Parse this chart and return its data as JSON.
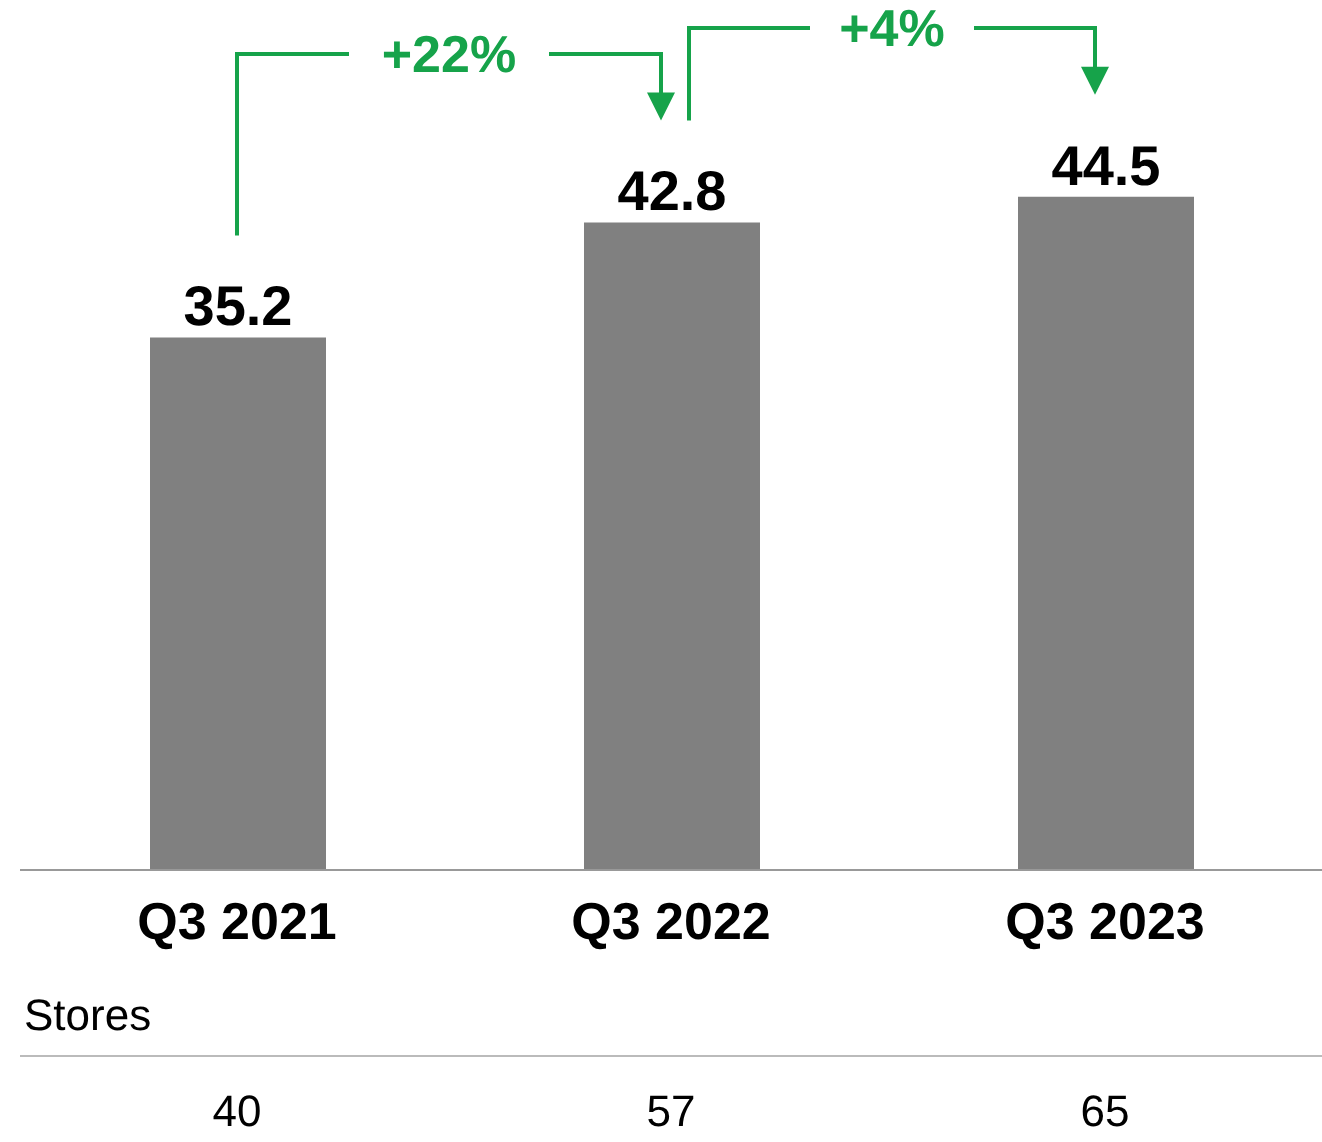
{
  "chart_data": [
    {
      "type": "bar",
      "categories": [
        "Q3 2021",
        "Q3 2022",
        "Q3 2023"
      ],
      "values": [
        35.2,
        42.8,
        44.5
      ],
      "color": "#808080",
      "ylim": [
        0,
        57.5
      ],
      "data_labels": true,
      "annotations": [
        "+22%",
        "+4%"
      ]
    },
    {
      "type": "other",
      "title": "Stores",
      "categories": [
        null,
        null,
        null
      ],
      "values": [
        40,
        57,
        65
      ],
      "data_labels": true
    }
  ]
}
